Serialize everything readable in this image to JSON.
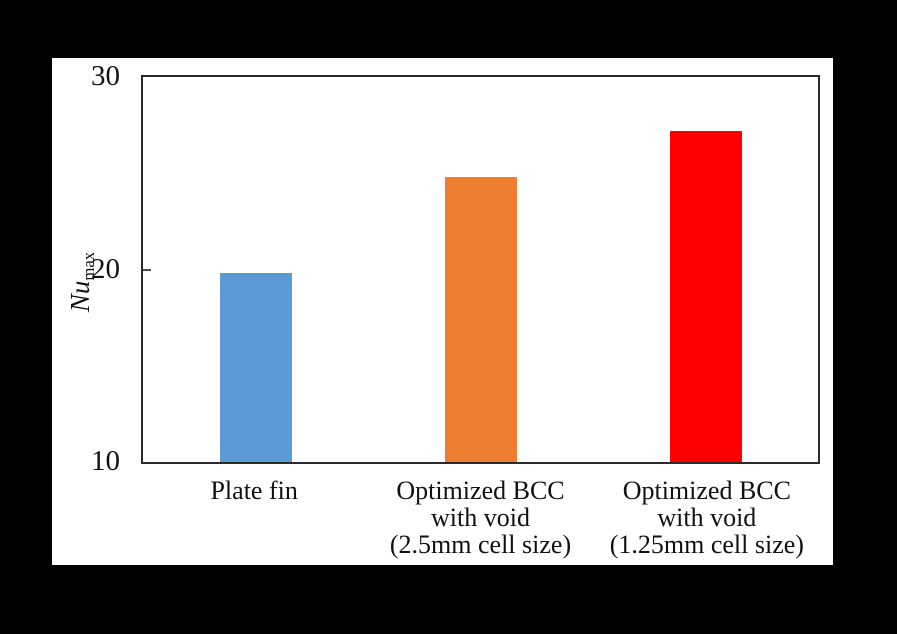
{
  "figure": {
    "background_color": "#000000",
    "panel_color": "#ffffff",
    "axis_line_color": "#2b2b2b",
    "text_color": "#111111"
  },
  "chart_data": {
    "type": "bar",
    "title": "",
    "categories": [
      "Plate fin",
      "Optimized BCC\nwith void\n(2.5mm cell size)",
      "Optimized BCC\nwith void\n(1.25mm cell size)"
    ],
    "values": [
      19.8,
      24.8,
      27.2
    ],
    "bar_colors": [
      "#5B9BD5",
      "#ED7D31",
      "#FF0000"
    ],
    "xlabel": "",
    "ylabel": {
      "italic": "Nu",
      "subscript": "max"
    },
    "ylim": [
      10,
      30
    ],
    "yticks": [
      10,
      20,
      30
    ],
    "grid": false,
    "legend_position": "none"
  }
}
